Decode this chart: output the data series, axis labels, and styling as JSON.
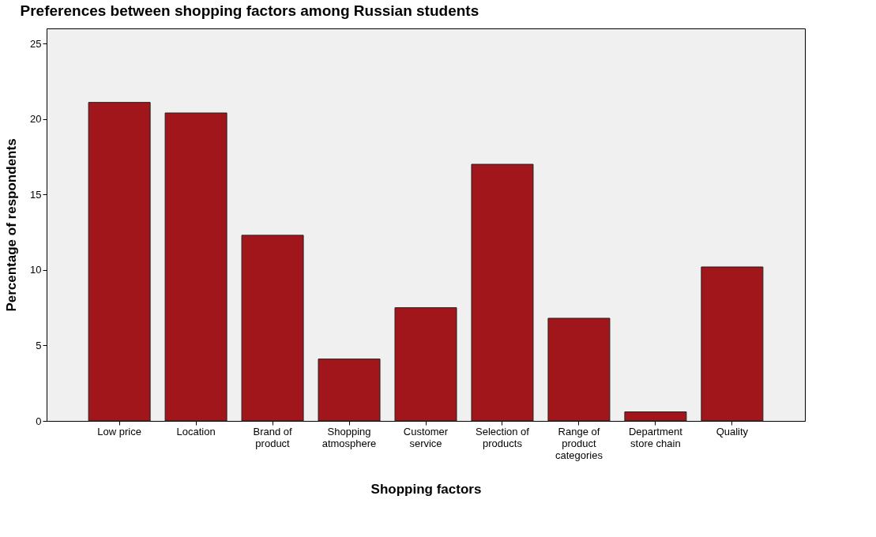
{
  "chart_data": {
    "type": "bar",
    "title": "Preferences between shopping factors among Russian students",
    "xlabel": "Shopping factors",
    "ylabel": "Percentage of respondents",
    "categories": [
      "Low price",
      "Location",
      "Brand of product",
      "Shopping atmosphere",
      "Customer service",
      "Selection of products",
      "Range of product categories",
      "Department store chain",
      "Quality"
    ],
    "values": [
      21.1,
      20.4,
      12.3,
      4.1,
      7.5,
      17.0,
      6.8,
      0.6,
      10.2
    ],
    "color": "#a0161a",
    "ylim": [
      0,
      26
    ],
    "yticks": [
      0,
      5,
      10,
      15,
      20,
      25
    ],
    "grid": false
  }
}
